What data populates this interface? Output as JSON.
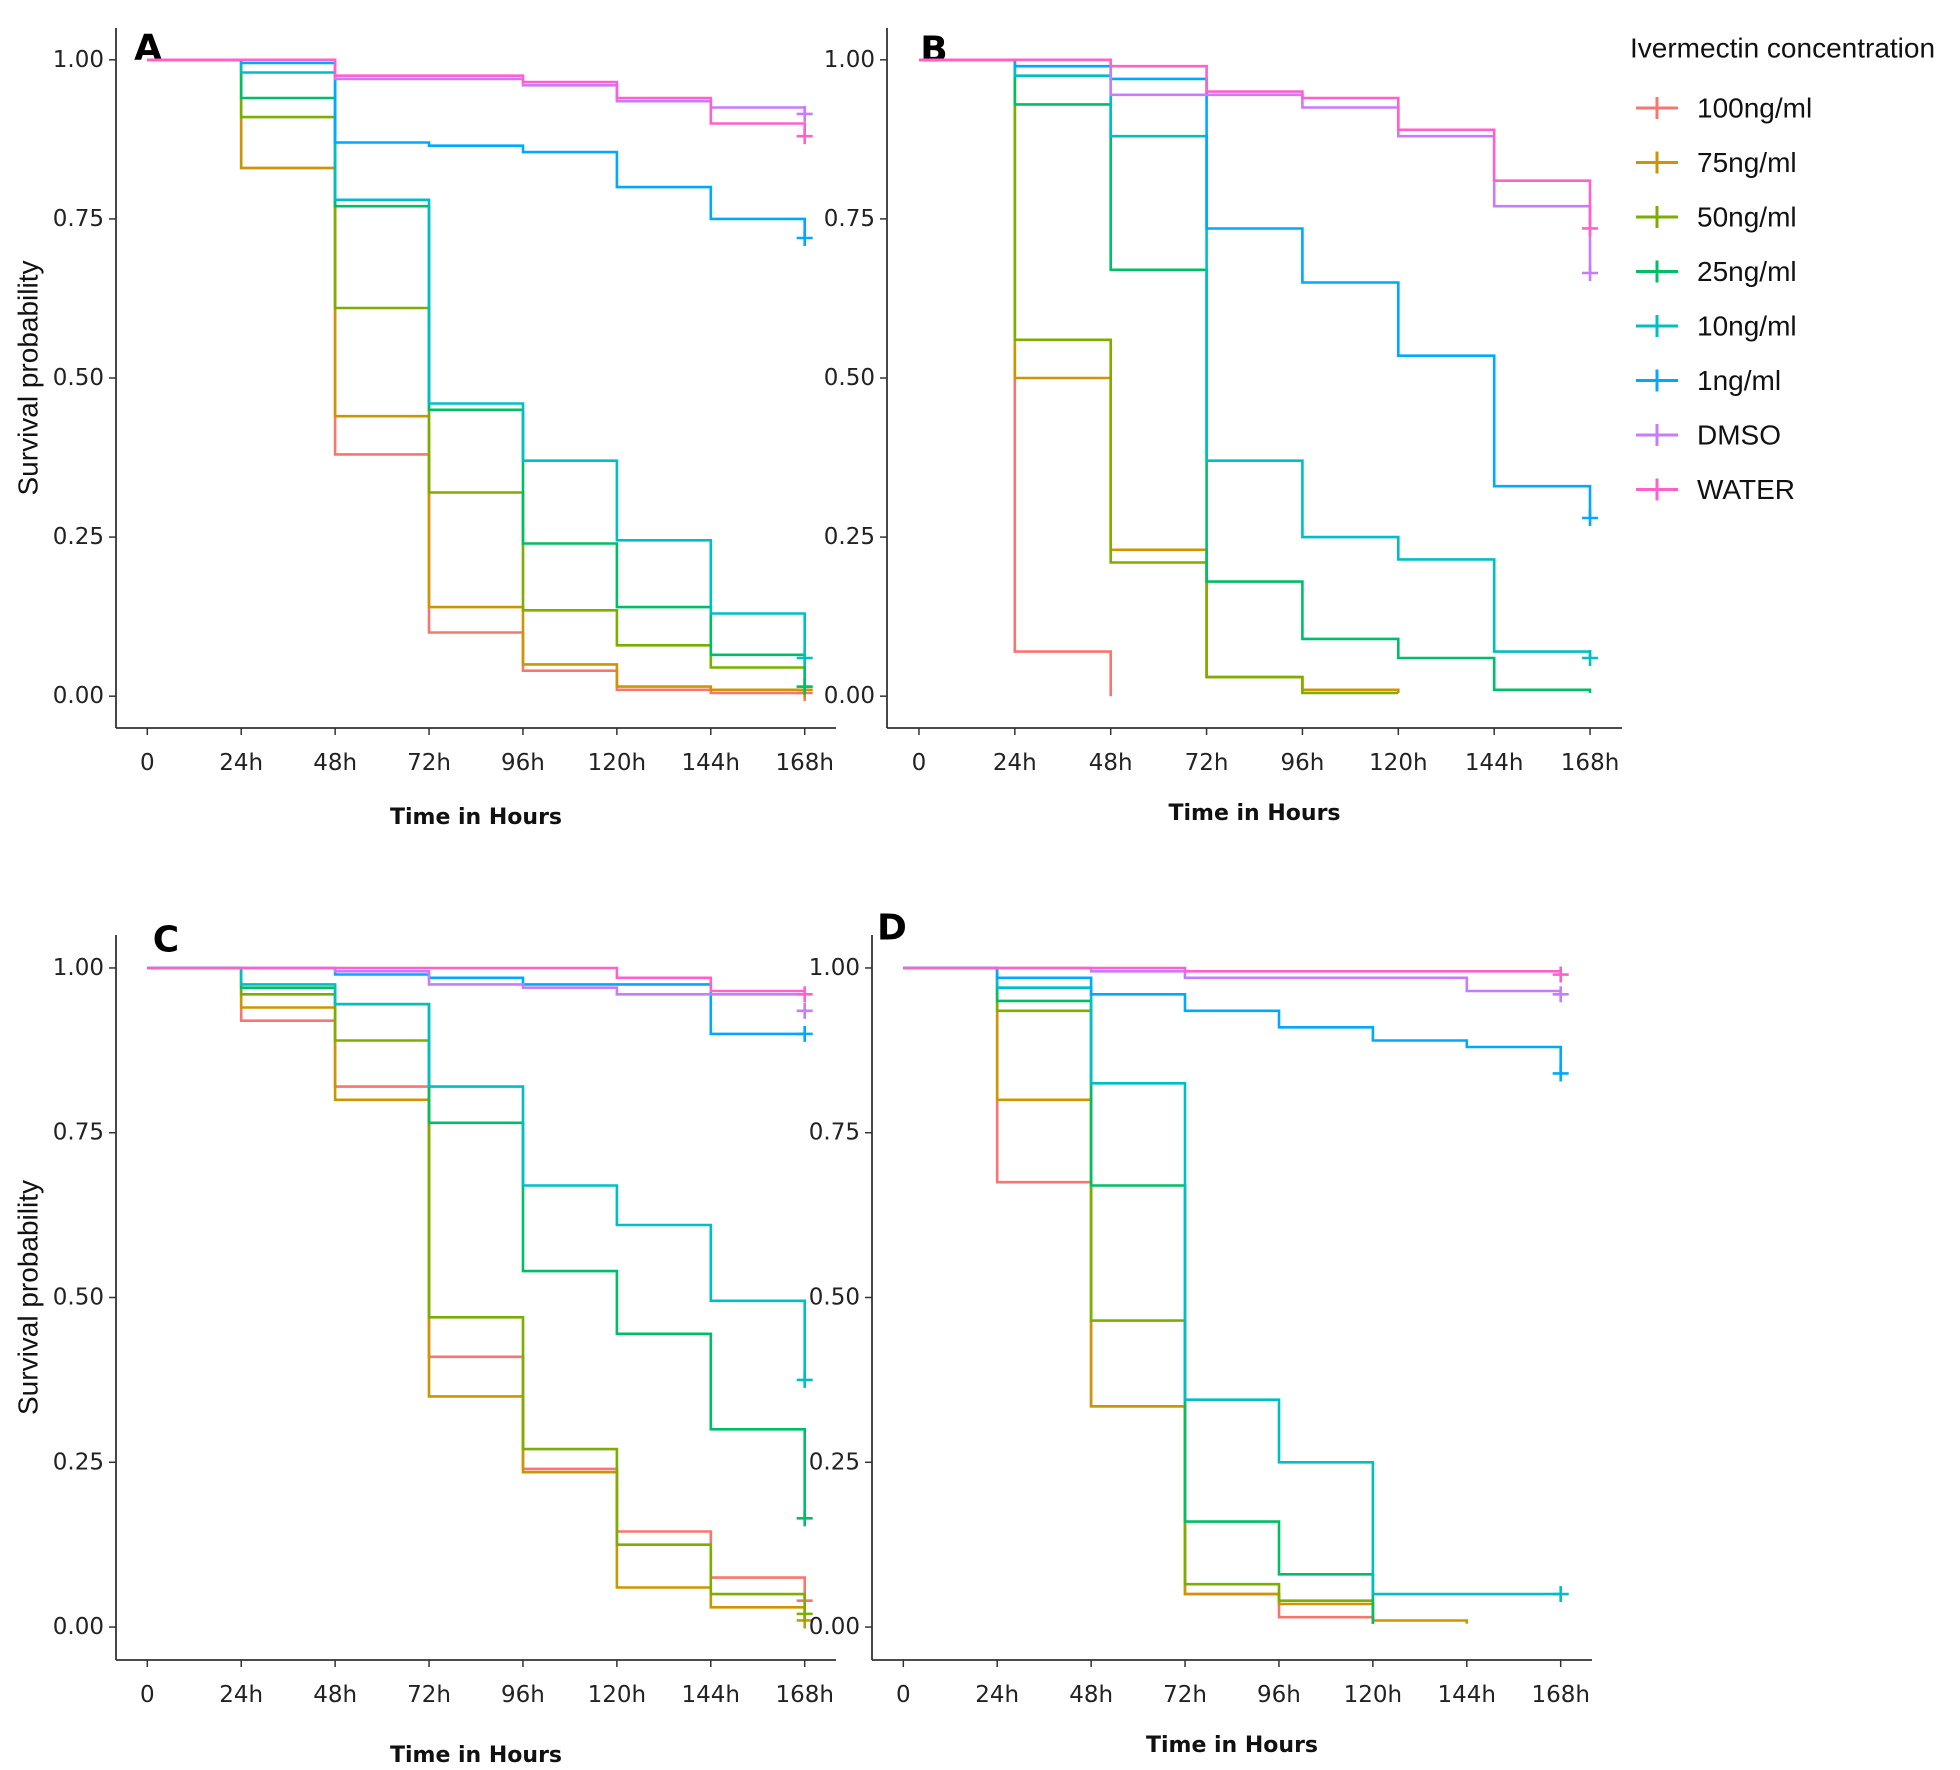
{
  "legend": {
    "title": "Ivermectin concentration",
    "position": "right",
    "entries": [
      {
        "name": "100ng/ml",
        "color": "#F8766D"
      },
      {
        "name": "75ng/ml",
        "color": "#CD9600"
      },
      {
        "name": "50ng/ml",
        "color": "#7CAE00"
      },
      {
        "name": "25ng/ml",
        "color": "#00BE67"
      },
      {
        "name": "10ng/ml",
        "color": "#00BFC4"
      },
      {
        "name": "1ng/ml",
        "color": "#00A9FF"
      },
      {
        "name": "DMSO",
        "color": "#C77CFF"
      },
      {
        "name": "WATER",
        "color": "#FF61CC"
      }
    ]
  },
  "chart_data": [
    {
      "panel": "A",
      "type": "line",
      "step": true,
      "xlabel": "Time in Hours",
      "ylabel": "Survival probability",
      "x_ticks": [
        0,
        24,
        48,
        72,
        96,
        120,
        144,
        168
      ],
      "x_tick_labels": [
        "0",
        "24h",
        "48h",
        "72h",
        "96h",
        "120h",
        "144h",
        "168h"
      ],
      "y_ticks": [
        0,
        0.25,
        0.5,
        0.75,
        1
      ],
      "y_tick_labels": [
        "0.00",
        "0.25",
        "0.50",
        "0.75",
        "1.00"
      ],
      "xlim": [
        -8,
        176
      ],
      "ylim": [
        -0.05,
        1.05
      ],
      "grid": false,
      "series": [
        {
          "name": "100ng/ml",
          "x": [
            0,
            24,
            48,
            72,
            96,
            120,
            144,
            168
          ],
          "y": [
            1,
            0.83,
            0.38,
            0.1,
            0.04,
            0.01,
            0.005,
            0.005
          ],
          "censor": 0.005
        },
        {
          "name": "75ng/ml",
          "x": [
            0,
            24,
            48,
            72,
            96,
            120,
            144,
            168
          ],
          "y": [
            1,
            0.83,
            0.44,
            0.14,
            0.05,
            0.015,
            0.01,
            0.01
          ],
          "censor": 0.01
        },
        {
          "name": "50ng/ml",
          "x": [
            0,
            24,
            48,
            72,
            96,
            120,
            144,
            168
          ],
          "y": [
            1,
            0.91,
            0.61,
            0.32,
            0.135,
            0.08,
            0.045,
            0.015
          ],
          "censor": 0.015
        },
        {
          "name": "25ng/ml",
          "x": [
            0,
            24,
            48,
            72,
            96,
            120,
            144,
            168
          ],
          "y": [
            1,
            0.94,
            0.77,
            0.45,
            0.24,
            0.14,
            0.065,
            0.015
          ],
          "censor": 0.015
        },
        {
          "name": "10ng/ml",
          "x": [
            0,
            24,
            48,
            72,
            96,
            120,
            144,
            168
          ],
          "y": [
            1,
            0.98,
            0.78,
            0.46,
            0.37,
            0.245,
            0.13,
            0.06
          ],
          "censor": 0.06
        },
        {
          "name": "1ng/ml",
          "x": [
            0,
            24,
            48,
            72,
            96,
            120,
            144,
            168
          ],
          "y": [
            1,
            0.995,
            0.87,
            0.865,
            0.855,
            0.8,
            0.75,
            0.72
          ],
          "censor": 0.72
        },
        {
          "name": "DMSO",
          "x": [
            0,
            24,
            48,
            72,
            96,
            120,
            144,
            168
          ],
          "y": [
            1,
            1,
            0.97,
            0.97,
            0.96,
            0.935,
            0.925,
            0.915
          ],
          "censor": 0.915
        },
        {
          "name": "WATER",
          "x": [
            0,
            24,
            48,
            72,
            96,
            120,
            144,
            168
          ],
          "y": [
            1,
            1,
            0.975,
            0.975,
            0.965,
            0.94,
            0.9,
            0.88
          ],
          "censor": 0.88
        }
      ]
    },
    {
      "panel": "B",
      "type": "line",
      "step": true,
      "xlabel": "Time in Hours",
      "ylabel": "",
      "x_ticks": [
        0,
        24,
        48,
        72,
        96,
        120,
        144,
        168
      ],
      "x_tick_labels": [
        "0",
        "24h",
        "48h",
        "72h",
        "96h",
        "120h",
        "144h",
        "168h"
      ],
      "y_ticks": [
        0,
        0.25,
        0.5,
        0.75,
        1
      ],
      "y_tick_labels": [
        "0.00",
        "0.25",
        "0.50",
        "0.75",
        "1.00"
      ],
      "xlim": [
        -8,
        176
      ],
      "ylim": [
        -0.05,
        1.05
      ],
      "grid": false,
      "series": [
        {
          "name": "100ng/ml",
          "x": [
            0,
            24,
            48
          ],
          "y": [
            1,
            0.07,
            0.0
          ],
          "censor": null
        },
        {
          "name": "75ng/ml",
          "x": [
            0,
            24,
            48,
            72,
            96,
            120
          ],
          "y": [
            1,
            0.5,
            0.23,
            0.03,
            0.01,
            0.005
          ],
          "censor": null
        },
        {
          "name": "50ng/ml",
          "x": [
            0,
            24,
            48,
            72,
            96,
            120
          ],
          "y": [
            1,
            0.56,
            0.21,
            0.03,
            0.005,
            0.005
          ],
          "censor": null
        },
        {
          "name": "25ng/ml",
          "x": [
            0,
            24,
            48,
            72,
            96,
            120,
            144,
            168
          ],
          "y": [
            1,
            0.93,
            0.67,
            0.18,
            0.09,
            0.06,
            0.01,
            0.005
          ],
          "censor": null
        },
        {
          "name": "10ng/ml",
          "x": [
            0,
            24,
            48,
            72,
            96,
            120,
            144,
            168
          ],
          "y": [
            1,
            0.975,
            0.88,
            0.37,
            0.25,
            0.215,
            0.07,
            0.06
          ],
          "censor": 0.06
        },
        {
          "name": "1ng/ml",
          "x": [
            0,
            24,
            48,
            72,
            96,
            120,
            144,
            168
          ],
          "y": [
            1,
            0.99,
            0.97,
            0.735,
            0.65,
            0.535,
            0.33,
            0.28
          ],
          "censor": 0.28
        },
        {
          "name": "DMSO",
          "x": [
            0,
            24,
            48,
            72,
            96,
            120,
            144,
            168
          ],
          "y": [
            1,
            1,
            0.945,
            0.945,
            0.925,
            0.88,
            0.77,
            0.665
          ],
          "censor": 0.665
        },
        {
          "name": "WATER",
          "x": [
            0,
            24,
            48,
            72,
            96,
            120,
            144,
            168
          ],
          "y": [
            1,
            1,
            0.99,
            0.95,
            0.94,
            0.89,
            0.81,
            0.735
          ],
          "censor": 0.735
        }
      ]
    },
    {
      "panel": "C",
      "type": "line",
      "step": true,
      "xlabel": "Time in Hours",
      "ylabel": "Survival probability",
      "x_ticks": [
        0,
        24,
        48,
        72,
        96,
        120,
        144,
        168
      ],
      "x_tick_labels": [
        "0",
        "24h",
        "48h",
        "72h",
        "96h",
        "120h",
        "144h",
        "168h"
      ],
      "y_ticks": [
        0,
        0.25,
        0.5,
        0.75,
        1
      ],
      "y_tick_labels": [
        "0.00",
        "0.25",
        "0.50",
        "0.75",
        "1.00"
      ],
      "xlim": [
        -8,
        176
      ],
      "ylim": [
        -0.05,
        1.05
      ],
      "grid": false,
      "series": [
        {
          "name": "100ng/ml",
          "x": [
            0,
            24,
            48,
            72,
            96,
            120,
            144,
            168
          ],
          "y": [
            1,
            0.92,
            0.82,
            0.41,
            0.24,
            0.145,
            0.075,
            0.04
          ],
          "censor": 0.04
        },
        {
          "name": "75ng/ml",
          "x": [
            0,
            24,
            48,
            72,
            96,
            120,
            144,
            168
          ],
          "y": [
            1,
            0.94,
            0.8,
            0.35,
            0.235,
            0.06,
            0.03,
            0.01
          ],
          "censor": 0.01
        },
        {
          "name": "50ng/ml",
          "x": [
            0,
            24,
            48,
            72,
            96,
            120,
            144,
            168
          ],
          "y": [
            1,
            0.96,
            0.89,
            0.47,
            0.27,
            0.125,
            0.05,
            0.02
          ],
          "censor": 0.02
        },
        {
          "name": "25ng/ml",
          "x": [
            0,
            24,
            48,
            72,
            96,
            120,
            144,
            168
          ],
          "y": [
            1,
            0.97,
            0.945,
            0.765,
            0.54,
            0.445,
            0.3,
            0.165
          ],
          "censor": 0.165
        },
        {
          "name": "10ng/ml",
          "x": [
            0,
            24,
            48,
            72,
            96,
            120,
            144,
            168
          ],
          "y": [
            1,
            0.975,
            0.945,
            0.82,
            0.67,
            0.61,
            0.495,
            0.375
          ],
          "censor": 0.375
        },
        {
          "name": "1ng/ml",
          "x": [
            0,
            24,
            48,
            72,
            96,
            120,
            144,
            168
          ],
          "y": [
            1,
            1,
            0.99,
            0.985,
            0.975,
            0.975,
            0.9,
            0.9
          ],
          "censor": 0.9
        },
        {
          "name": "DMSO",
          "x": [
            0,
            24,
            48,
            72,
            96,
            120,
            144,
            168
          ],
          "y": [
            1,
            1,
            0.995,
            0.975,
            0.97,
            0.96,
            0.96,
            0.96
          ],
          "censor": 0.935
        },
        {
          "name": "WATER",
          "x": [
            0,
            24,
            48,
            72,
            96,
            120,
            144,
            168
          ],
          "y": [
            1,
            1,
            1,
            1,
            1,
            0.985,
            0.965,
            0.96
          ],
          "censor": 0.96
        }
      ]
    },
    {
      "panel": "D",
      "type": "line",
      "step": true,
      "xlabel": "Time in Hours",
      "ylabel": "",
      "x_ticks": [
        0,
        24,
        48,
        72,
        96,
        120,
        144,
        168
      ],
      "x_tick_labels": [
        "0",
        "24h",
        "48h",
        "72h",
        "96h",
        "120h",
        "144h",
        "168h"
      ],
      "y_ticks": [
        0,
        0.25,
        0.5,
        0.75,
        1
      ],
      "y_tick_labels": [
        "0.00",
        "0.25",
        "0.50",
        "0.75",
        "1.00"
      ],
      "xlim": [
        -8,
        176
      ],
      "ylim": [
        -0.05,
        1.05
      ],
      "grid": false,
      "series": [
        {
          "name": "100ng/ml",
          "x": [
            0,
            24,
            48,
            72,
            96,
            120
          ],
          "y": [
            1,
            0.675,
            0.335,
            0.05,
            0.015,
            0.005
          ],
          "censor": null
        },
        {
          "name": "75ng/ml",
          "x": [
            0,
            24,
            48,
            72,
            96,
            120,
            144
          ],
          "y": [
            1,
            0.8,
            0.335,
            0.05,
            0.035,
            0.01,
            0.005
          ],
          "censor": null
        },
        {
          "name": "50ng/ml",
          "x": [
            0,
            24,
            48,
            72,
            96,
            120
          ],
          "y": [
            1,
            0.935,
            0.465,
            0.065,
            0.04,
            0.005
          ],
          "censor": null
        },
        {
          "name": "25ng/ml",
          "x": [
            0,
            24,
            48,
            72,
            96,
            120
          ],
          "y": [
            1,
            0.95,
            0.67,
            0.16,
            0.08,
            0.005
          ],
          "censor": null
        },
        {
          "name": "10ng/ml",
          "x": [
            0,
            24,
            48,
            72,
            96,
            120,
            168
          ],
          "y": [
            1,
            0.97,
            0.825,
            0.345,
            0.25,
            0.05,
            0.05
          ],
          "censor": 0.05
        },
        {
          "name": "1ng/ml",
          "x": [
            0,
            24,
            48,
            72,
            96,
            120,
            144,
            168
          ],
          "y": [
            1,
            0.985,
            0.96,
            0.935,
            0.91,
            0.89,
            0.88,
            0.84
          ],
          "censor": 0.84
        },
        {
          "name": "DMSO",
          "x": [
            0,
            24,
            48,
            72,
            96,
            120,
            144,
            168
          ],
          "y": [
            1,
            1,
            0.995,
            0.985,
            0.985,
            0.985,
            0.965,
            0.96
          ],
          "censor": 0.96
        },
        {
          "name": "WATER",
          "x": [
            0,
            24,
            48,
            72,
            96,
            120,
            144,
            168
          ],
          "y": [
            1,
            1,
            1,
            0.995,
            0.995,
            0.995,
            0.995,
            0.99
          ],
          "censor": 0.99
        }
      ]
    }
  ]
}
